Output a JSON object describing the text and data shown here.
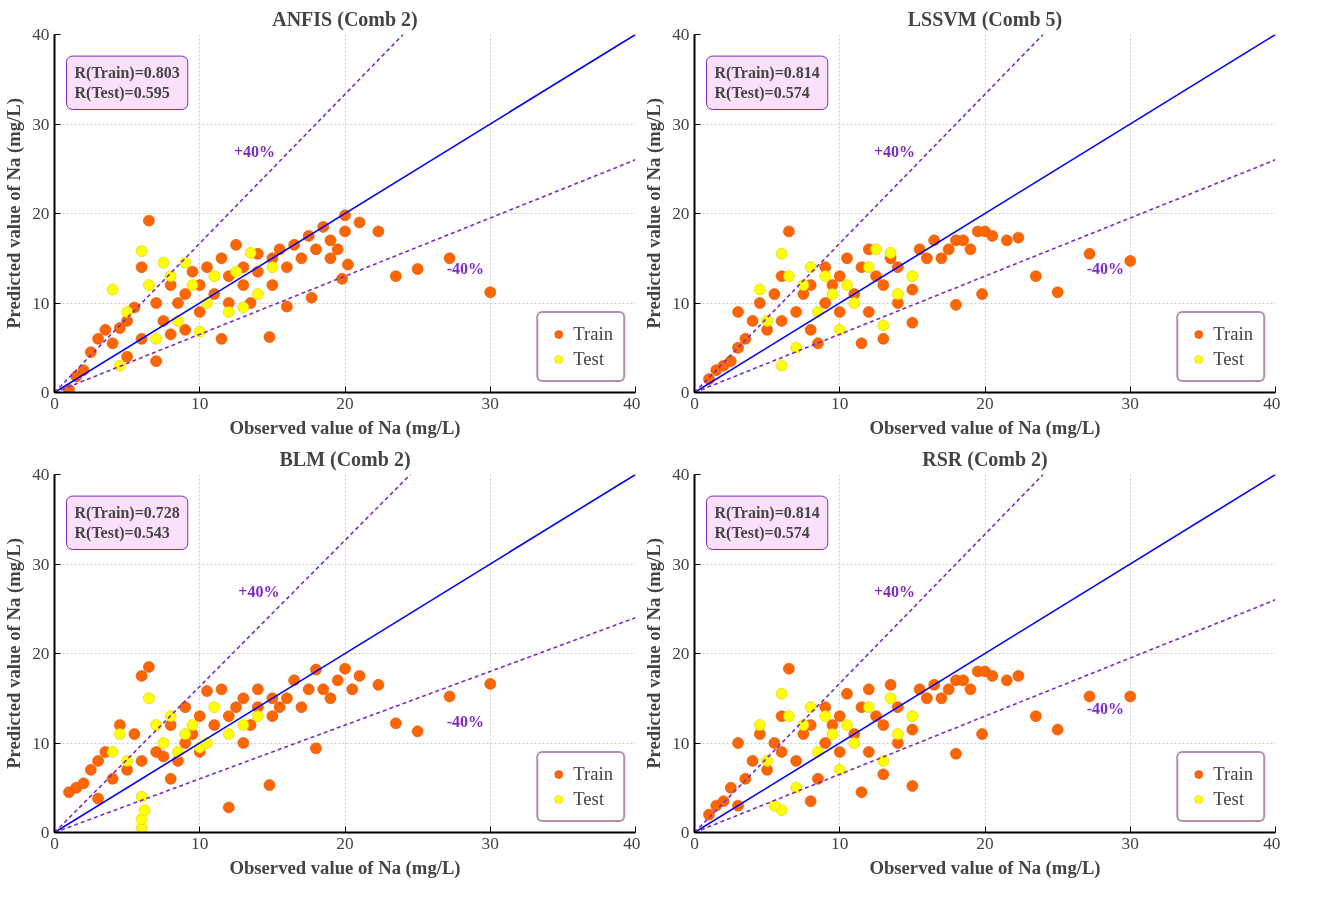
{
  "chart_data": [
    {
      "type": "scatter",
      "title": "ANFIS (Comb 2)",
      "xlabel": "Observed value of Na (mg/L)",
      "ylabel": "Predicted value of Na (mg/L)",
      "xlim": [
        0,
        40
      ],
      "ylim": [
        0,
        40
      ],
      "xticks": [
        0,
        10,
        20,
        30,
        40
      ],
      "yticks": [
        0,
        10,
        20,
        30,
        40
      ],
      "grid": true,
      "legend": "bottom right",
      "annotations": [
        "R(Train)=0.803",
        "R(Test)=0.595",
        {
          "text": "+40%",
          "x": 15.6,
          "y": 26
        },
        {
          "text": "-40%",
          "x": 27,
          "y": 17.55
        }
      ],
      "series": [
        {
          "name": "Train",
          "color": "#ff6600",
          "x": [
            1,
            1.5,
            2,
            2.5,
            3,
            3.5,
            4,
            4.5,
            5,
            5,
            5.5,
            6,
            6,
            6.5,
            7,
            7,
            7.5,
            8,
            8,
            8.5,
            9,
            9,
            9.5,
            10,
            10,
            10.5,
            11,
            11.5,
            11.5,
            12,
            12,
            12.5,
            13,
            13,
            13.5,
            14,
            14,
            14.8,
            15,
            15,
            15.5,
            16,
            16,
            16.5,
            17,
            17.5,
            17.7,
            18,
            18.5,
            19,
            19,
            19.5,
            19.8,
            20,
            20,
            20.2,
            21,
            22.3,
            23.5,
            25,
            27.2,
            30
          ],
          "values": [
            0.3,
            1.8,
            2.5,
            4.5,
            6,
            7,
            5.5,
            7.2,
            8,
            4,
            9.5,
            6,
            14,
            19.2,
            3.5,
            10,
            8,
            12,
            6.5,
            10,
            11,
            7,
            13.5,
            9,
            12,
            14,
            11,
            6,
            15,
            10,
            13,
            16.5,
            12,
            14,
            10,
            13.5,
            15.5,
            6.2,
            12,
            15,
            16,
            9.6,
            14,
            16.5,
            15,
            17.5,
            10.6,
            16,
            18.5,
            15,
            17,
            16,
            12.7,
            19.8,
            18,
            14.3,
            19,
            18,
            13,
            13.8,
            15,
            11.2
          ]
        },
        {
          "name": "Test",
          "color": "#ffff00",
          "x": [
            4,
            4.5,
            5,
            6,
            6.5,
            7,
            7.5,
            8,
            8.5,
            9,
            9.5,
            10,
            10.5,
            11,
            12,
            13,
            13.5,
            14,
            15,
            12.5
          ],
          "values": [
            11.5,
            3,
            9,
            15.8,
            12,
            6,
            14.5,
            13,
            8,
            14.5,
            12,
            6.8,
            10,
            13,
            9,
            9.5,
            15.6,
            11,
            14,
            13.5
          ]
        },
        {
          "type": "line",
          "color": "#0000ff",
          "line_style": "solid",
          "x": [
            0,
            40
          ],
          "values": [
            0,
            40
          ]
        },
        {
          "type": "line",
          "color": "#7b2cbf",
          "line_style": "dashed",
          "x": [
            0,
            24
          ],
          "values": [
            0,
            40
          ]
        },
        {
          "type": "line",
          "color": "#7b2cbf",
          "line_style": "dashed",
          "x": [
            0,
            40
          ],
          "values": [
            0,
            26
          ]
        }
      ]
    },
    {
      "type": "scatter",
      "title": "LSSVM (Comb 5)",
      "xlabel": "Observed value of Na (mg/L)",
      "ylabel": "Predicted value of Na (mg/L)",
      "xlim": [
        0,
        40
      ],
      "ylim": [
        0,
        40
      ],
      "xticks": [
        0,
        10,
        20,
        30,
        40
      ],
      "yticks": [
        0,
        10,
        20,
        30,
        40
      ],
      "grid": true,
      "legend": "bottom right",
      "annotations": [
        "R(Train)=0.814",
        "R(Test)=0.574",
        {
          "text": "+40%",
          "x": 15.6,
          "y": 26
        },
        {
          "text": "-40%",
          "x": 27,
          "y": 17.55
        }
      ],
      "series": [
        {
          "name": "Train",
          "color": "#ff6600",
          "x": [
            1,
            1.5,
            2,
            2.5,
            3,
            3,
            3.5,
            4,
            4.5,
            5,
            5.5,
            6,
            6,
            6.5,
            7,
            7.5,
            8,
            8,
            8.5,
            9,
            9,
            9.5,
            10,
            10,
            10.5,
            11,
            11.5,
            11.5,
            12,
            12,
            12.5,
            13,
            13,
            13.5,
            14,
            14,
            15,
            15,
            15.5,
            16,
            16.5,
            17,
            17.5,
            18,
            18,
            18.5,
            19,
            19.5,
            19.8,
            20,
            20.5,
            21.5,
            22.3,
            23.5,
            25,
            27.2,
            30
          ],
          "values": [
            1.5,
            2.5,
            3,
            3.5,
            5,
            9,
            6,
            8,
            10,
            7,
            11,
            8,
            13,
            18,
            9,
            11,
            7,
            12,
            5.5,
            10,
            14,
            12,
            9,
            13,
            15,
            11,
            5.5,
            14,
            9,
            16,
            13,
            6,
            12,
            15,
            10,
            14,
            7.8,
            11.5,
            16,
            15,
            17,
            15,
            16,
            9.8,
            17,
            17,
            16,
            18,
            11,
            18,
            17.5,
            17,
            17.3,
            13,
            11.2,
            15.5,
            14.7
          ]
        },
        {
          "name": "Test",
          "color": "#ffff00",
          "x": [
            4.5,
            5,
            6,
            6,
            6.5,
            7,
            7.5,
            8,
            8.5,
            9,
            9.5,
            10,
            10.5,
            11,
            12,
            13,
            13.5,
            14,
            12.5,
            15
          ],
          "values": [
            11.5,
            8,
            3,
            15.5,
            13,
            5,
            12,
            14,
            9,
            13,
            11,
            7,
            12,
            10,
            14,
            7.5,
            15.6,
            11,
            16,
            13
          ]
        },
        {
          "type": "line",
          "color": "#0000ff",
          "line_style": "solid",
          "x": [
            0,
            40
          ],
          "values": [
            0,
            40
          ]
        },
        {
          "type": "line",
          "color": "#7b2cbf",
          "line_style": "dashed",
          "x": [
            0,
            24
          ],
          "values": [
            0,
            40
          ]
        },
        {
          "type": "line",
          "color": "#7b2cbf",
          "line_style": "dashed",
          "x": [
            0,
            40
          ],
          "values": [
            0,
            26
          ]
        }
      ]
    },
    {
      "type": "scatter",
      "title": "BLM (Comb 2)",
      "xlabel": "Observed value of Na (mg/L)",
      "ylabel": "Predicted value of Na (mg/L)",
      "xlim": [
        0,
        40
      ],
      "ylim": [
        0,
        40
      ],
      "xticks": [
        0,
        10,
        20,
        30,
        40
      ],
      "yticks": [
        0,
        10,
        20,
        30,
        40
      ],
      "grid": true,
      "legend": "bottom right",
      "annotations": [
        "R(Train)=0.728",
        "R(Test)=0.543",
        {
          "text": "+40%",
          "x": 15.9,
          "y": 26
        },
        {
          "text": "-40%",
          "x": 27,
          "y": 16.2
        }
      ],
      "series": [
        {
          "name": "Train",
          "color": "#ff6600",
          "x": [
            1,
            1.5,
            2,
            2.5,
            3,
            3,
            3.5,
            4,
            4.5,
            5,
            5.5,
            6,
            6,
            6.5,
            7,
            7.5,
            8,
            8,
            8.5,
            9,
            9,
            9.5,
            10,
            10,
            10.5,
            11,
            11.5,
            12,
            12,
            12.5,
            13,
            13,
            13.5,
            14,
            14,
            14.8,
            15,
            15,
            15.5,
            16,
            16.5,
            17,
            17.5,
            18,
            18,
            18.5,
            19,
            19.5,
            20,
            20.5,
            21,
            22.3,
            23.5,
            25,
            27.2,
            30
          ],
          "values": [
            4.5,
            5,
            5.5,
            7,
            8,
            3.8,
            9,
            6,
            12,
            7,
            11,
            8,
            17.5,
            18.5,
            9,
            8.5,
            6,
            12,
            8,
            10,
            14,
            11,
            9,
            13,
            15.8,
            12,
            16,
            2.8,
            13,
            14,
            10,
            15,
            12,
            14,
            16,
            5.3,
            13,
            15,
            14,
            15,
            17,
            14,
            16,
            9.4,
            18.2,
            16,
            15,
            17,
            18.3,
            16,
            17.5,
            16.5,
            12.2,
            11.3,
            15.2,
            16.6
          ]
        },
        {
          "name": "Test",
          "color": "#ffff00",
          "x": [
            4,
            4.5,
            5,
            6,
            6,
            6.2,
            6,
            6.5,
            7,
            7.5,
            8,
            8.5,
            9,
            9.5,
            10,
            10.5,
            11,
            12,
            13,
            14
          ],
          "values": [
            9,
            11,
            8,
            0.5,
            1.5,
            2.5,
            4,
            15,
            12,
            10,
            13,
            9,
            11,
            12,
            9.5,
            10,
            14,
            11,
            12,
            13
          ]
        },
        {
          "type": "line",
          "color": "#0000ff",
          "line_style": "solid",
          "x": [
            0,
            40
          ],
          "values": [
            0,
            40
          ]
        },
        {
          "type": "line",
          "color": "#7b2cbf",
          "line_style": "dashed",
          "x": [
            0,
            24.5
          ],
          "values": [
            0,
            40
          ]
        },
        {
          "type": "line",
          "color": "#7b2cbf",
          "line_style": "dashed",
          "x": [
            0,
            40
          ],
          "values": [
            0,
            24
          ]
        }
      ]
    },
    {
      "type": "scatter",
      "title": "RSR (Comb 2)",
      "xlabel": "Observed value of Na (mg/L)",
      "ylabel": "Predicted value of Na (mg/L)",
      "xlim": [
        0,
        40
      ],
      "ylim": [
        0,
        40
      ],
      "xticks": [
        0,
        10,
        20,
        30,
        40
      ],
      "yticks": [
        0,
        10,
        20,
        30,
        40
      ],
      "grid": true,
      "legend": "bottom right",
      "annotations": [
        "R(Train)=0.814",
        "R(Test)=0.574",
        {
          "text": "+40%",
          "x": 15.6,
          "y": 26
        },
        {
          "text": "-40%",
          "x": 27,
          "y": 17.55
        }
      ],
      "series": [
        {
          "name": "Train",
          "color": "#ff6600",
          "x": [
            1,
            1.5,
            2,
            2.5,
            3,
            3,
            3.5,
            4,
            4.5,
            5,
            5.5,
            6,
            6,
            6.5,
            7,
            7.5,
            8,
            8,
            8.5,
            9,
            9,
            9.5,
            10,
            10,
            10.5,
            11,
            11.5,
            11.5,
            12,
            12,
            12.5,
            13,
            13,
            13.5,
            14,
            14,
            15,
            15,
            15.5,
            16,
            16.5,
            17,
            17.5,
            18,
            18,
            18.5,
            19,
            19.5,
            19.8,
            20,
            20.5,
            21.5,
            22.3,
            23.5,
            25,
            27.2,
            30
          ],
          "values": [
            2,
            3,
            3.5,
            5,
            10,
            3,
            6,
            8,
            11,
            7,
            10,
            9,
            13,
            18.3,
            8,
            11,
            3.5,
            12,
            6,
            10,
            14,
            12,
            9,
            13,
            15.5,
            11,
            4.5,
            14,
            9,
            16,
            13,
            6.5,
            12,
            16.5,
            10,
            14,
            5.2,
            11.5,
            16,
            15,
            16.5,
            15,
            16,
            8.8,
            17,
            17,
            16,
            18,
            11,
            18,
            17.5,
            17,
            17.5,
            13,
            11.5,
            15.2,
            15.2
          ]
        },
        {
          "name": "Test",
          "color": "#ffff00",
          "x": [
            4.5,
            5,
            6,
            6,
            6.5,
            7,
            7.5,
            8,
            8.5,
            9,
            9.5,
            10,
            10.5,
            11,
            12,
            13,
            13.5,
            14,
            5.5,
            15
          ],
          "values": [
            12,
            8,
            2.5,
            15.5,
            13,
            5,
            12,
            14,
            9,
            13,
            11,
            7,
            12,
            10,
            14,
            8,
            15,
            11,
            3,
            13
          ]
        },
        {
          "type": "line",
          "color": "#0000ff",
          "line_style": "solid",
          "x": [
            0,
            40
          ],
          "values": [
            0,
            40
          ]
        },
        {
          "type": "line",
          "color": "#7b2cbf",
          "line_style": "dashed",
          "x": [
            0,
            24
          ],
          "values": [
            0,
            40
          ]
        },
        {
          "type": "line",
          "color": "#7b2cbf",
          "line_style": "dashed",
          "x": [
            0,
            40
          ],
          "values": [
            0,
            26
          ]
        }
      ]
    }
  ]
}
